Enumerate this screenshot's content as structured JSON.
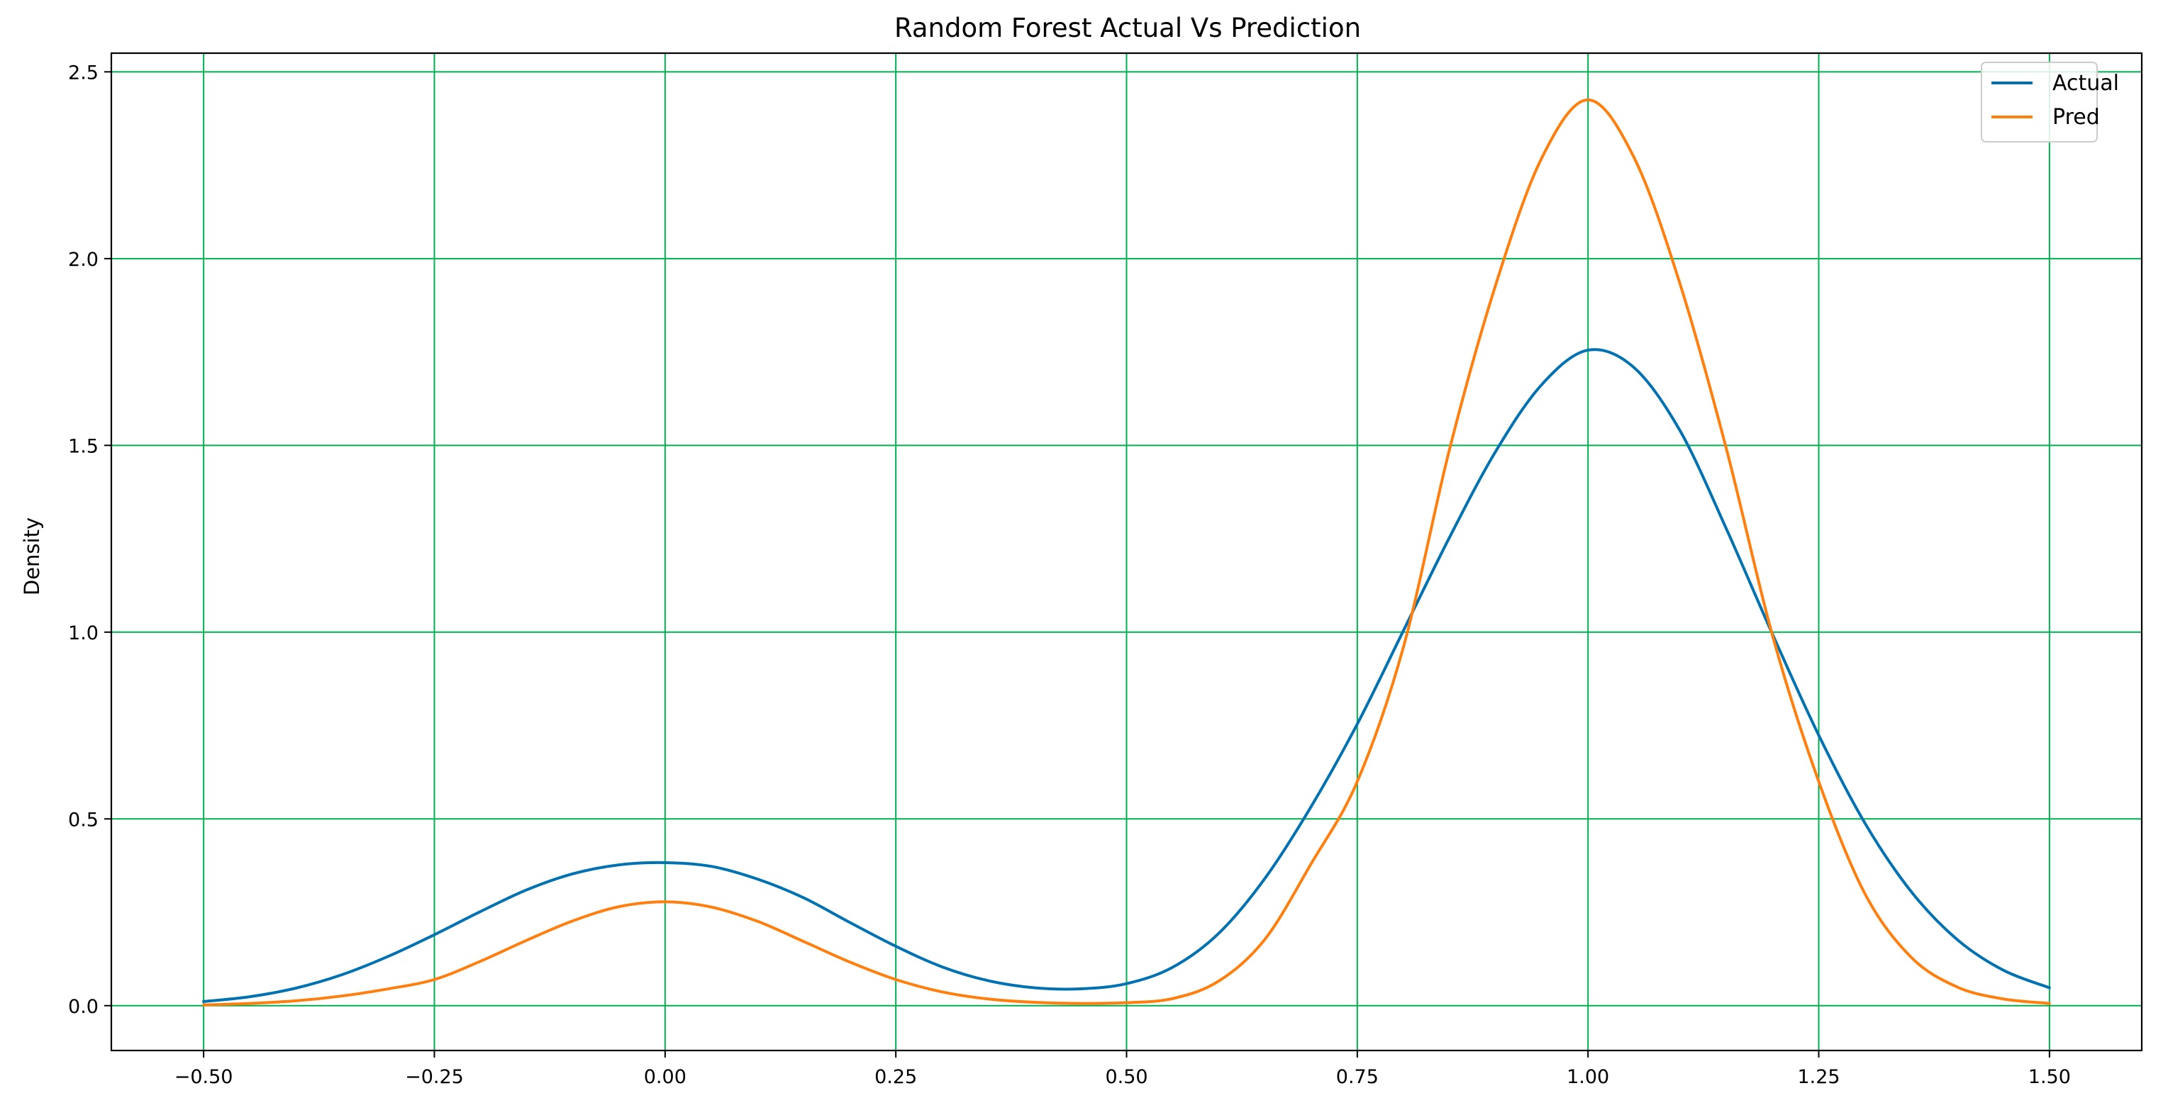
{
  "chart_data": {
    "type": "line",
    "title": "Random Forest Actual Vs Prediction",
    "xlabel": "",
    "ylabel": "Density",
    "xlim": [
      -0.6,
      1.6
    ],
    "ylim": [
      -0.12,
      2.55
    ],
    "xticks": [
      -0.5,
      -0.25,
      0.0,
      0.25,
      0.5,
      0.75,
      1.0,
      1.25,
      1.5
    ],
    "xtick_labels": [
      "−0.50",
      "−0.25",
      "0.00",
      "0.25",
      "0.50",
      "0.75",
      "1.00",
      "1.25",
      "1.50"
    ],
    "yticks": [
      0.0,
      0.5,
      1.0,
      1.5,
      2.0,
      2.5
    ],
    "ytick_labels": [
      "0.0",
      "0.5",
      "1.0",
      "1.5",
      "2.0",
      "2.5"
    ],
    "grid": true,
    "grid_color": "#00b050",
    "legend_position": "top-right",
    "series": [
      {
        "name": "Actual",
        "color": "#0072b2",
        "x": [
          -0.5,
          -0.45,
          -0.4,
          -0.35,
          -0.3,
          -0.25,
          -0.2,
          -0.15,
          -0.1,
          -0.05,
          0.0,
          0.05,
          0.1,
          0.15,
          0.2,
          0.25,
          0.3,
          0.35,
          0.4,
          0.45,
          0.5,
          0.55,
          0.6,
          0.65,
          0.7,
          0.75,
          0.8,
          0.85,
          0.9,
          0.95,
          1.0,
          1.05,
          1.1,
          1.15,
          1.2,
          1.25,
          1.3,
          1.35,
          1.4,
          1.45,
          1.5
        ],
        "y": [
          0.011,
          0.024,
          0.047,
          0.083,
          0.132,
          0.19,
          0.252,
          0.31,
          0.353,
          0.377,
          0.383,
          0.373,
          0.339,
          0.289,
          0.223,
          0.159,
          0.104,
          0.067,
          0.048,
          0.045,
          0.059,
          0.103,
          0.194,
          0.341,
          0.533,
          0.754,
          1.004,
          1.254,
          1.484,
          1.663,
          1.755,
          1.708,
          1.538,
          1.276,
          0.994,
          0.724,
          0.489,
          0.306,
          0.177,
          0.095,
          0.048
        ]
      },
      {
        "name": "Pred",
        "color": "#ff7f0e",
        "x": [
          -0.5,
          -0.45,
          -0.4,
          -0.35,
          -0.3,
          -0.25,
          -0.2,
          -0.15,
          -0.1,
          -0.05,
          0.0,
          0.05,
          0.1,
          0.15,
          0.2,
          0.25,
          0.3,
          0.35,
          0.4,
          0.45,
          0.5,
          0.55,
          0.6,
          0.65,
          0.7,
          0.75,
          0.8,
          0.85,
          0.9,
          0.95,
          1.0,
          1.05,
          1.1,
          1.15,
          1.2,
          1.25,
          1.3,
          1.35,
          1.4,
          1.45,
          1.5
        ],
        "y": [
          0.002,
          0.006,
          0.013,
          0.026,
          0.045,
          0.07,
          0.119,
          0.175,
          0.227,
          0.265,
          0.278,
          0.264,
          0.226,
          0.172,
          0.117,
          0.07,
          0.037,
          0.018,
          0.009,
          0.006,
          0.008,
          0.019,
          0.066,
          0.178,
          0.38,
          0.6,
          0.96,
          1.49,
          1.93,
          2.27,
          2.425,
          2.27,
          1.93,
          1.49,
          0.99,
          0.6,
          0.3,
          0.13,
          0.05,
          0.018,
          0.006
        ]
      }
    ]
  }
}
